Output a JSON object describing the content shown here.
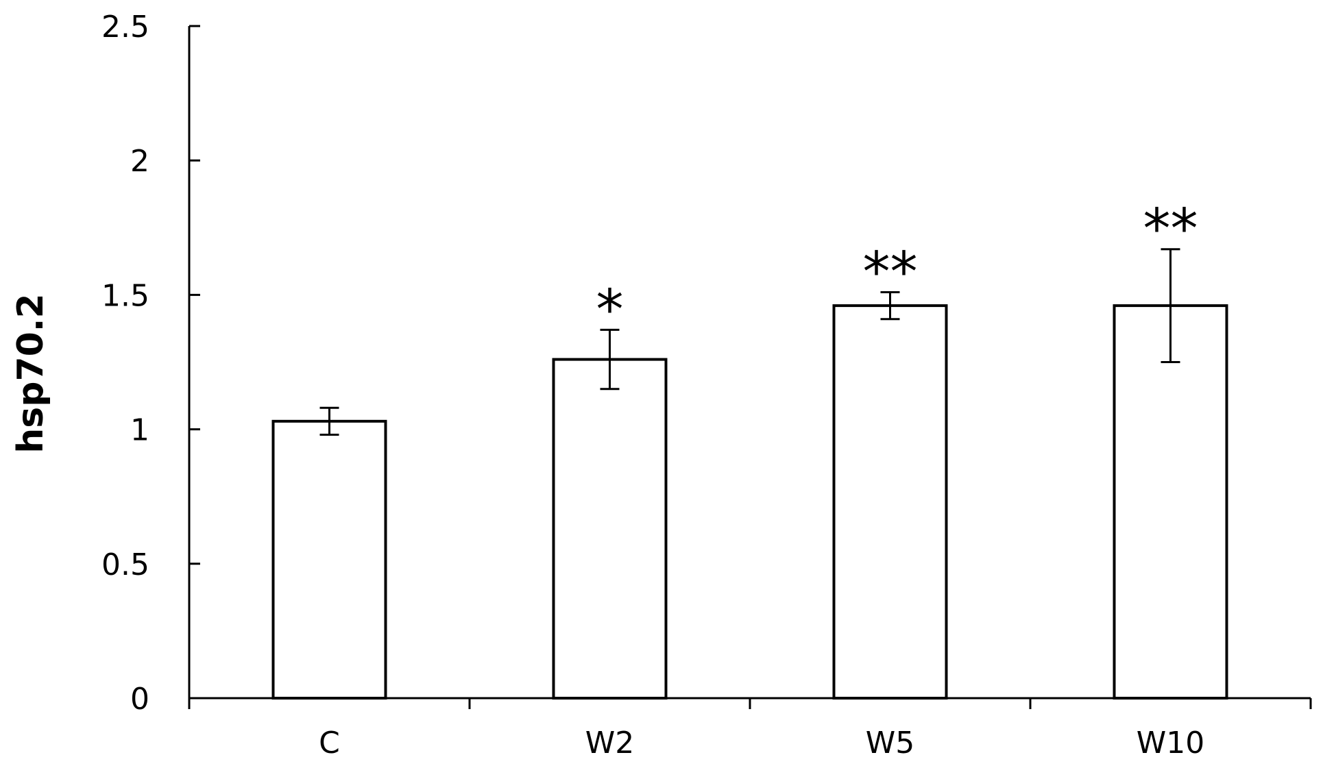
{
  "chart_data": {
    "type": "bar",
    "categories": [
      "C",
      "W2",
      "W5",
      "W10"
    ],
    "values": [
      1.03,
      1.26,
      1.46,
      1.46
    ],
    "errors": [
      0.05,
      0.11,
      0.05,
      0.21
    ],
    "significance": [
      "",
      "*",
      "**",
      "**"
    ],
    "title": "",
    "xlabel": "",
    "ylabel": "hsp70.2",
    "ylim": [
      0,
      2.5
    ],
    "yticks": [
      0,
      0.5,
      1,
      1.5,
      2,
      2.5
    ],
    "ytick_labels": [
      "0",
      "0.5",
      "1",
      "1.5",
      "2",
      "2.5"
    ],
    "grid": false,
    "legend": "none",
    "bar_fill": "#ffffff",
    "bar_stroke": "#000000"
  }
}
